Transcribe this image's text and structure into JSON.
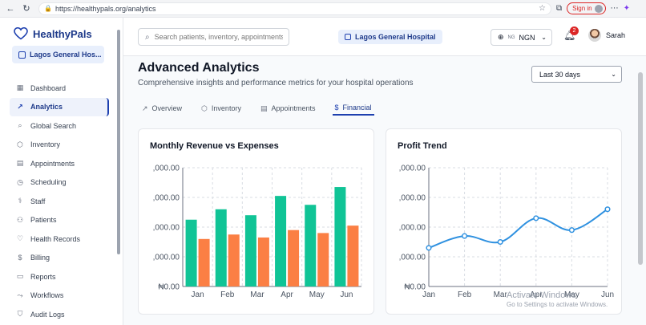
{
  "browser": {
    "url": "https://healthypals.org/analytics",
    "sign_in": "Sign in"
  },
  "app": {
    "name": "HealthyPals",
    "hospital_short": "Lagos General Hos...",
    "hospital_full": "Lagos General Hospital"
  },
  "sidebar": {
    "items": [
      {
        "label": "Dashboard",
        "icon": "grid-icon",
        "active": false
      },
      {
        "label": "Analytics",
        "icon": "trend-icon",
        "active": true
      },
      {
        "label": "Global Search",
        "icon": "search-icon",
        "active": false
      },
      {
        "label": "Inventory",
        "icon": "box-icon",
        "active": false
      },
      {
        "label": "Appointments",
        "icon": "calendar-icon",
        "active": false
      },
      {
        "label": "Scheduling",
        "icon": "clock-icon",
        "active": false
      },
      {
        "label": "Staff",
        "icon": "stethoscope-icon",
        "active": false
      },
      {
        "label": "Patients",
        "icon": "users-icon",
        "active": false
      },
      {
        "label": "Health Records",
        "icon": "heart-icon",
        "active": false
      },
      {
        "label": "Billing",
        "icon": "dollar-icon",
        "active": false
      },
      {
        "label": "Reports",
        "icon": "file-icon",
        "active": false
      },
      {
        "label": "Workflows",
        "icon": "workflow-icon",
        "active": false
      },
      {
        "label": "Audit Logs",
        "icon": "shield-icon",
        "active": false
      }
    ]
  },
  "header": {
    "search_placeholder": "Search patients, inventory, appointments...",
    "currency_flag": "NG",
    "currency_code": "NGN",
    "notifications_count": "2",
    "user_name": "Sarah"
  },
  "page": {
    "title": "Advanced Analytics",
    "subtitle": "Comprehensive insights and performance metrics for your hospital operations",
    "date_range": "Last 30 days",
    "tabs": [
      {
        "label": "Overview",
        "icon": "trend-icon",
        "active": false
      },
      {
        "label": "Inventory",
        "icon": "box-icon",
        "active": false
      },
      {
        "label": "Appointments",
        "icon": "calendar-icon",
        "active": false
      },
      {
        "label": "Financial",
        "icon": "dollar-icon",
        "active": true
      }
    ]
  },
  "colors": {
    "revenue": "#10c496",
    "expenses": "#fb7f44",
    "profit": "#2f91e0",
    "accent": "#1e40af"
  },
  "chart_data": [
    {
      "type": "bar",
      "title": "Monthly Revenue vs Expenses",
      "categories": [
        "Jan",
        "Feb",
        "Mar",
        "Apr",
        "May",
        "Jun"
      ],
      "series": [
        {
          "values": [
            45000,
            52000,
            48000,
            61000,
            55000,
            67000
          ]
        },
        {
          "values": [
            32000,
            35000,
            33000,
            38000,
            36000,
            41000
          ]
        }
      ],
      "y_ticks": [
        ",000.00",
        ",000.00",
        ",000.00",
        ",000.00",
        "₦0.00"
      ],
      "ylim": [
        0,
        80000
      ],
      "grid": true
    },
    {
      "type": "line",
      "title": "Profit Trend",
      "categories": [
        "Jan",
        "Feb",
        "Mar",
        "Apr",
        "May",
        "Jun"
      ],
      "series": [
        {
          "values": [
            13000,
            17000,
            15000,
            23000,
            19000,
            26000
          ]
        }
      ],
      "y_ticks": [
        ",000.00",
        ",000.00",
        ",000.00",
        ",000.00",
        "₦0.00"
      ],
      "ylim": [
        0,
        40000
      ],
      "grid": true
    }
  ],
  "watermark": {
    "line1": "Activate Windows",
    "line2": "Go to Settings to activate Windows."
  }
}
